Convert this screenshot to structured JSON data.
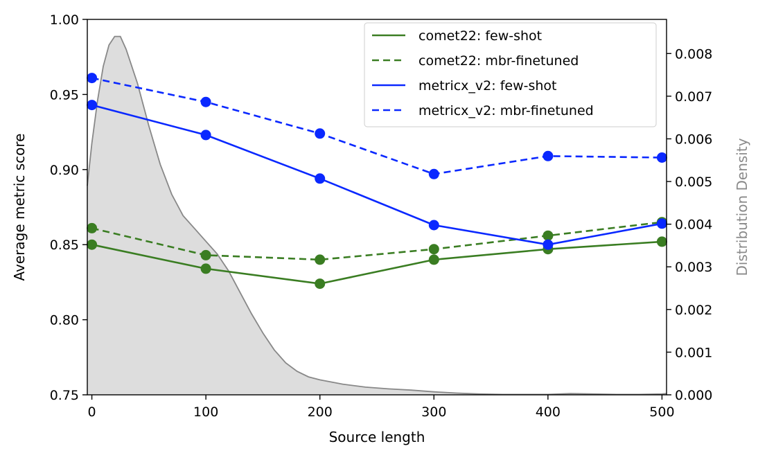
{
  "chart_data": {
    "type": "line",
    "xlabel": "Source length",
    "ylabel": "Average metric score",
    "y2label": "Distribution Density",
    "xlim": [
      -4,
      504
    ],
    "ylim": [
      0.75,
      1.0
    ],
    "y2lim": [
      0,
      0.0088
    ],
    "xticks": [
      0,
      100,
      200,
      300,
      400,
      500
    ],
    "xtick_labels": [
      "0",
      "100",
      "200",
      "300",
      "400",
      "500"
    ],
    "yticks": [
      0.75,
      0.8,
      0.85,
      0.9,
      0.95,
      1.0
    ],
    "ytick_labels": [
      "0.75",
      "0.80",
      "0.85",
      "0.90",
      "0.95",
      "1.00"
    ],
    "y2ticks": [
      0,
      0.001,
      0.002,
      0.003,
      0.004,
      0.005,
      0.006,
      0.007,
      0.008
    ],
    "y2tick_labels": [
      "0.000",
      "0.001",
      "0.002",
      "0.003",
      "0.004",
      "0.005",
      "0.006",
      "0.007",
      "0.008"
    ],
    "legend_position": "top-right",
    "x": [
      0,
      100,
      200,
      300,
      400,
      500
    ],
    "series": [
      {
        "name": "comet22: few-shot",
        "color": "#3a7d22",
        "dashed": false,
        "values": [
          0.85,
          0.834,
          0.824,
          0.84,
          0.847,
          0.852
        ]
      },
      {
        "name": "comet22: mbr-finetuned",
        "color": "#3a7d22",
        "dashed": true,
        "values": [
          0.861,
          0.843,
          0.84,
          0.847,
          0.856,
          0.865
        ]
      },
      {
        "name": "metricx_v2: few-shot",
        "color": "#0a28ff",
        "dashed": false,
        "values": [
          0.943,
          0.923,
          0.894,
          0.863,
          0.85,
          0.864
        ]
      },
      {
        "name": "metricx_v2: mbr-finetuned",
        "color": "#0a28ff",
        "dashed": true,
        "values": [
          0.961,
          0.945,
          0.924,
          0.897,
          0.909,
          0.908
        ]
      }
    ],
    "density": {
      "name": "Source length distribution",
      "color": "#888888",
      "fill": "#dddddd",
      "x": [
        -4,
        0,
        5,
        10,
        15,
        20,
        25,
        30,
        40,
        50,
        60,
        70,
        80,
        90,
        100,
        110,
        120,
        130,
        140,
        150,
        160,
        170,
        180,
        190,
        200,
        220,
        240,
        260,
        280,
        300,
        320,
        340,
        360,
        380,
        400,
        420,
        440,
        460,
        480,
        500,
        504
      ],
      "values": [
        0.0049,
        0.0059,
        0.0069,
        0.0077,
        0.0082,
        0.0084,
        0.0084,
        0.0081,
        0.0073,
        0.0063,
        0.0054,
        0.0047,
        0.0042,
        0.0039,
        0.0036,
        0.0033,
        0.0029,
        0.0024,
        0.0019,
        0.00145,
        0.00105,
        0.00075,
        0.00055,
        0.00042,
        0.00035,
        0.00025,
        0.00018,
        0.00014,
        0.00011,
        7e-05,
        4e-05,
        2e-05,
        1e-05,
        1e-05,
        1e-05,
        3e-05,
        2e-05,
        1e-05,
        1e-05,
        2e-05,
        3e-05
      ]
    }
  }
}
